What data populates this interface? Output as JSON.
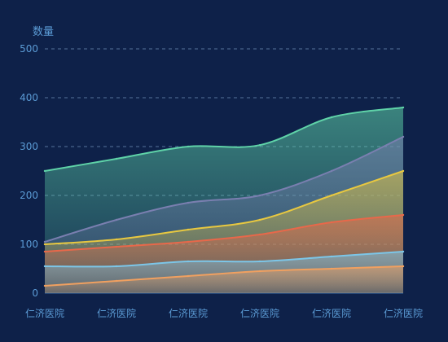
{
  "chart_data": {
    "type": "area",
    "stacked": false,
    "smooth": true,
    "ylabel": "数量",
    "ylim": [
      0,
      500
    ],
    "yticks": [
      0,
      100,
      200,
      300,
      400,
      500
    ],
    "categories": [
      "仁济医院",
      "仁济医院",
      "仁济医院",
      "仁济医院",
      "仁济医院",
      "仁济医院"
    ],
    "grid": true,
    "legend": "none",
    "series": [
      {
        "color": "#5fd3a8",
        "values": [
          250,
          275,
          300,
          303,
          360,
          380
        ]
      },
      {
        "color": "#7a7fb0",
        "values": [
          105,
          150,
          185,
          200,
          250,
          320
        ]
      },
      {
        "color": "#e8c840",
        "values": [
          100,
          110,
          130,
          150,
          200,
          250
        ]
      },
      {
        "color": "#e8684a",
        "values": [
          85,
          95,
          105,
          120,
          145,
          160
        ]
      },
      {
        "color": "#7cc6e8",
        "values": [
          55,
          55,
          65,
          65,
          75,
          85
        ]
      },
      {
        "color": "#f0a060",
        "values": [
          15,
          25,
          35,
          45,
          50,
          55
        ]
      }
    ]
  }
}
